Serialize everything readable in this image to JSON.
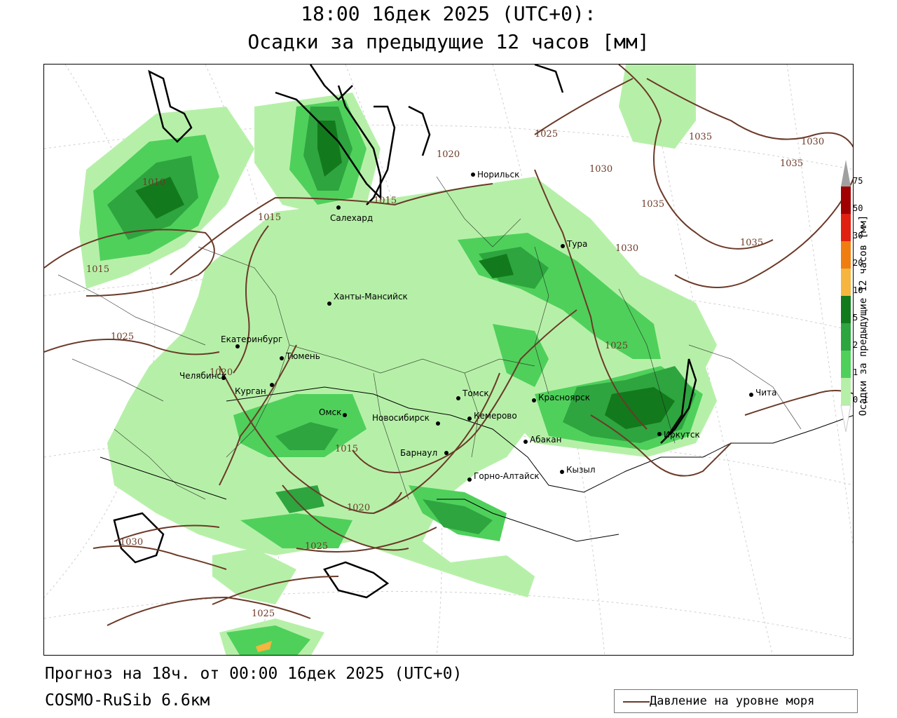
{
  "title": {
    "line1": "18:00 16дек 2025 (UTC+0):",
    "line2": "Осадки за предыдущие 12 часов [мм]"
  },
  "footer": {
    "forecast": "Прогноз на 18ч. от 00:00 16дек 2025 (UTC+0)",
    "model": "COSMO-RuSib 6.6км"
  },
  "legend": {
    "isobar_label": "Давление на уровне моря",
    "isobar_color": "#6b3a28"
  },
  "colorbar": {
    "title": "Осадки за предыдущие 12 часов [мм]",
    "levels": [
      "0.1",
      "1",
      "2",
      "5",
      "10",
      "20",
      "30",
      "50",
      "75"
    ],
    "colors": [
      "#b6f0a8",
      "#4fd05b",
      "#2ea53f",
      "#127a1c",
      "#f5b53f",
      "#f07d10",
      "#e02010",
      "#a00000",
      "#a0a0a0"
    ]
  },
  "isobar_labels": [
    {
      "label": "1010"
    },
    {
      "label": "1015"
    },
    {
      "label": "1015"
    },
    {
      "label": "1015"
    },
    {
      "label": "1020"
    },
    {
      "label": "1025"
    },
    {
      "label": "1030"
    },
    {
      "label": "1035"
    },
    {
      "label": "1035"
    },
    {
      "label": "1030"
    },
    {
      "label": "1035"
    },
    {
      "label": "1035"
    },
    {
      "label": "1030"
    },
    {
      "label": "1025"
    },
    {
      "label": "1025"
    },
    {
      "label": "1020"
    },
    {
      "label": "1015"
    },
    {
      "label": "1020"
    },
    {
      "label": "1025"
    },
    {
      "label": "1030"
    },
    {
      "label": "1025"
    }
  ],
  "cities": [
    {
      "name": "Норильск"
    },
    {
      "name": "Салехард"
    },
    {
      "name": "Тура"
    },
    {
      "name": "Ханты-Мансийск"
    },
    {
      "name": "Екатеринбург"
    },
    {
      "name": "Тюмень"
    },
    {
      "name": "Челябинск"
    },
    {
      "name": "Курган"
    },
    {
      "name": "Омск"
    },
    {
      "name": "Новосибирск"
    },
    {
      "name": "Томск"
    },
    {
      "name": "Кемерово"
    },
    {
      "name": "Красноярск"
    },
    {
      "name": "Абакан"
    },
    {
      "name": "Барнаул"
    },
    {
      "name": "Горно-Алтайск"
    },
    {
      "name": "Кызыл"
    },
    {
      "name": "Иркутск"
    },
    {
      "name": "Чита"
    }
  ]
}
